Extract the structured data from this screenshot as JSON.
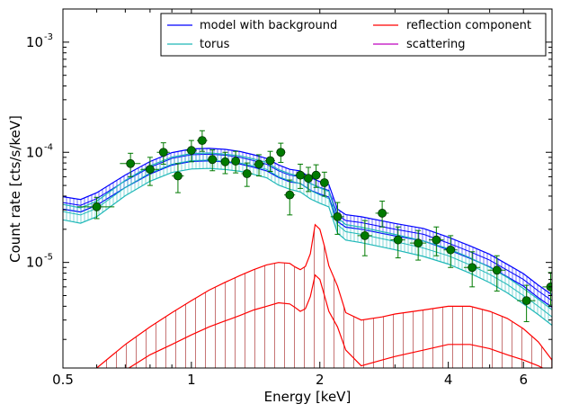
{
  "chart_data": {
    "type": "line",
    "xlabel": "Energy [keV]",
    "ylabel": "Count rate [cts/s/keV]",
    "x_scale": "log",
    "y_scale": "log",
    "xlim": [
      0.5,
      7.0
    ],
    "ylim": [
      1.1e-06,
      0.002
    ],
    "x_ticks": [
      {
        "value": 0.5,
        "label": "0.5"
      },
      {
        "value": 1,
        "label": "1"
      },
      {
        "value": 2,
        "label": "2"
      },
      {
        "value": 4,
        "label": "4"
      },
      {
        "value": 6,
        "label": "6"
      }
    ],
    "y_ticks": [
      {
        "value": 1e-05,
        "base": "10",
        "exp": "-5"
      },
      {
        "value": 0.0001,
        "base": "10",
        "exp": "-4"
      },
      {
        "value": 0.001,
        "base": "10",
        "exp": "-3"
      }
    ],
    "legend_position": "top-right",
    "legend": [
      {
        "label": "model with background",
        "color": "#0000ff"
      },
      {
        "label": "reflection component",
        "color": "#ff0000"
      },
      {
        "label": "torus",
        "color": "#1fb8b8"
      },
      {
        "label": "scattering",
        "color": "#bf00bf"
      }
    ],
    "series": [
      {
        "name": "model with background",
        "color": "#0000ff",
        "style": "band",
        "x": [
          0.5,
          0.55,
          0.6,
          0.7,
          0.8,
          0.9,
          1.0,
          1.1,
          1.2,
          1.3,
          1.4,
          1.5,
          1.6,
          1.7,
          1.8,
          1.9,
          2.0,
          2.1,
          2.2,
          2.3,
          2.5,
          3.0,
          3.5,
          4.0,
          4.5,
          5.0,
          5.5,
          6.0,
          6.5,
          7.0
        ],
        "y": [
          3.5e-05,
          3.3e-05,
          3.8e-05,
          5.5e-05,
          7.3e-05,
          8.8e-05,
          9.5e-05,
          9.6e-05,
          9.4e-05,
          9e-05,
          8.4e-05,
          7.8e-05,
          6.8e-05,
          6.2e-05,
          6e-05,
          5.2e-05,
          4.8e-05,
          4.5e-05,
          2.7e-05,
          2.4e-05,
          2.3e-05,
          2e-05,
          1.8e-05,
          1.5e-05,
          1.25e-05,
          1.05e-05,
          8.5e-06,
          7e-06,
          5.5e-06,
          4.5e-06
        ],
        "band": 0.13
      },
      {
        "name": "torus",
        "color": "#1fb8b8",
        "style": "band",
        "x": [
          0.5,
          0.55,
          0.6,
          0.7,
          0.8,
          0.9,
          1.0,
          1.1,
          1.2,
          1.3,
          1.4,
          1.5,
          1.6,
          1.7,
          1.8,
          1.9,
          2.0,
          2.1,
          2.2,
          2.3,
          2.5,
          3.0,
          3.5,
          4.0,
          4.5,
          5.0,
          5.5,
          6.0,
          6.5,
          7.0
        ],
        "y": [
          2.9e-05,
          2.7e-05,
          3.1e-05,
          4.8e-05,
          6.5e-05,
          7.8e-05,
          8.4e-05,
          8.5e-05,
          8.3e-05,
          8e-05,
          7.5e-05,
          7e-05,
          6e-05,
          5.5e-05,
          5.2e-05,
          4.5e-05,
          4.1e-05,
          3.8e-05,
          2.2e-05,
          1.9e-05,
          1.8e-05,
          1.55e-05,
          1.35e-05,
          1.15e-05,
          9.5e-06,
          7.8e-06,
          6.3e-06,
          5e-06,
          4e-06,
          3.2e-06
        ],
        "band": 0.16
      },
      {
        "name": "reflection component",
        "color": "#ff0000",
        "style": "band",
        "x": [
          0.6,
          0.7,
          0.8,
          0.9,
          1.0,
          1.1,
          1.2,
          1.3,
          1.4,
          1.5,
          1.6,
          1.7,
          1.75,
          1.8,
          1.85,
          1.9,
          1.95,
          2.0,
          2.05,
          2.1,
          2.2,
          2.3,
          2.5,
          2.8,
          3.0,
          3.5,
          4.0,
          4.5,
          5.0,
          5.5,
          6.0,
          6.5,
          7.0
        ],
        "y_low": [
          8e-07,
          1.05e-06,
          1.45e-06,
          1.8e-06,
          2.2e-06,
          2.6e-06,
          2.95e-06,
          3.3e-06,
          3.7e-06,
          4e-06,
          4.3e-06,
          4.2e-06,
          3.9e-06,
          3.6e-06,
          3.8e-06,
          4.9e-06,
          7.7e-06,
          7e-06,
          5e-06,
          3.6e-06,
          2.6e-06,
          1.6e-06,
          1.15e-06,
          1.3e-06,
          1.4e-06,
          1.6e-06,
          1.8e-06,
          1.8e-06,
          1.65e-06,
          1.45e-06,
          1.3e-06,
          1.15e-06,
          1e-06
        ],
        "y_high": [
          1.1e-06,
          1.8e-06,
          2.6e-06,
          3.5e-06,
          4.5e-06,
          5.6e-06,
          6.6e-06,
          7.6e-06,
          8.6e-06,
          9.5e-06,
          1e-05,
          9.8e-06,
          9.1e-06,
          8.6e-06,
          9.2e-06,
          1.2e-05,
          2.2e-05,
          2e-05,
          1.4e-05,
          9.3e-06,
          6.1e-06,
          3.5e-06,
          3e-06,
          3.2e-06,
          3.4e-06,
          3.7e-06,
          4e-06,
          4e-06,
          3.6e-06,
          3.1e-06,
          2.5e-06,
          1.9e-06,
          1.3e-06
        ]
      },
      {
        "name": "scattering",
        "color": "#bf00bf",
        "style": "line",
        "x": [],
        "y": []
      }
    ],
    "data_points": {
      "name": "data",
      "color": "#007a00",
      "points": [
        {
          "x": 0.6,
          "y": 3.2e-05,
          "xerr": 0.06,
          "ylo": 2.5e-05,
          "yhi": 3.9e-05
        },
        {
          "x": 0.72,
          "y": 7.9e-05,
          "xerr": 0.04,
          "ylo": 6e-05,
          "yhi": 9.8e-05
        },
        {
          "x": 0.8,
          "y": 7e-05,
          "xerr": 0.04,
          "ylo": 5e-05,
          "yhi": 9e-05
        },
        {
          "x": 0.86,
          "y": 0.0001,
          "xerr": 0.03,
          "ylo": 7.8e-05,
          "yhi": 0.000122
        },
        {
          "x": 0.93,
          "y": 6.1e-05,
          "xerr": 0.03,
          "ylo": 4.3e-05,
          "yhi": 7.9e-05
        },
        {
          "x": 1.0,
          "y": 0.000104,
          "xerr": 0.03,
          "ylo": 8.2e-05,
          "yhi": 0.000128
        },
        {
          "x": 1.06,
          "y": 0.000128,
          "xerr": 0.03,
          "ylo": 0.000102,
          "yhi": 0.000157
        },
        {
          "x": 1.12,
          "y": 8.6e-05,
          "xerr": 0.03,
          "ylo": 6.8e-05,
          "yhi": 0.000105
        },
        {
          "x": 1.2,
          "y": 8.2e-05,
          "xerr": 0.03,
          "ylo": 6.4e-05,
          "yhi": 0.0001
        },
        {
          "x": 1.27,
          "y": 8.3e-05,
          "xerr": 0.03,
          "ylo": 6.5e-05,
          "yhi": 0.000102
        },
        {
          "x": 1.35,
          "y": 6.4e-05,
          "xerr": 0.04,
          "ylo": 4.9e-05,
          "yhi": 8e-05
        },
        {
          "x": 1.44,
          "y": 7.8e-05,
          "xerr": 0.04,
          "ylo": 6.1e-05,
          "yhi": 9.5e-05
        },
        {
          "x": 1.53,
          "y": 8.4e-05,
          "xerr": 0.04,
          "ylo": 6.7e-05,
          "yhi": 0.000102
        },
        {
          "x": 1.62,
          "y": 0.0001,
          "xerr": 0.04,
          "ylo": 8.1e-05,
          "yhi": 0.000121
        },
        {
          "x": 1.7,
          "y": 4.1e-05,
          "xerr": 0.05,
          "ylo": 2.7e-05,
          "yhi": 5.6e-05
        },
        {
          "x": 1.8,
          "y": 6.2e-05,
          "xerr": 0.05,
          "ylo": 4.7e-05,
          "yhi": 7.8e-05
        },
        {
          "x": 1.88,
          "y": 5.8e-05,
          "xerr": 0.05,
          "ylo": 4.4e-05,
          "yhi": 7.3e-05
        },
        {
          "x": 1.96,
          "y": 6.2e-05,
          "xerr": 0.05,
          "ylo": 4.8e-05,
          "yhi": 7.7e-05
        },
        {
          "x": 2.05,
          "y": 5.3e-05,
          "xerr": 0.05,
          "ylo": 4e-05,
          "yhi": 6.6e-05
        },
        {
          "x": 2.2,
          "y": 2.6e-05,
          "xerr": 0.08,
          "ylo": 1.8e-05,
          "yhi": 3.5e-05
        },
        {
          "x": 2.55,
          "y": 1.75e-05,
          "xerr": 0.1,
          "ylo": 1.15e-05,
          "yhi": 2.4e-05
        },
        {
          "x": 2.8,
          "y": 2.8e-05,
          "xerr": 0.1,
          "ylo": 2.1e-05,
          "yhi": 3.6e-05
        },
        {
          "x": 3.05,
          "y": 1.6e-05,
          "xerr": 0.12,
          "ylo": 1.1e-05,
          "yhi": 2.1e-05
        },
        {
          "x": 3.4,
          "y": 1.5e-05,
          "xerr": 0.15,
          "ylo": 1.05e-05,
          "yhi": 1.95e-05
        },
        {
          "x": 3.75,
          "y": 1.6e-05,
          "xerr": 0.15,
          "ylo": 1.15e-05,
          "yhi": 2.1e-05
        },
        {
          "x": 4.05,
          "y": 1.3e-05,
          "xerr": 0.15,
          "ylo": 9e-06,
          "yhi": 1.75e-05
        },
        {
          "x": 4.55,
          "y": 9e-06,
          "xerr": 0.2,
          "ylo": 6e-06,
          "yhi": 1.25e-05
        },
        {
          "x": 5.2,
          "y": 8.5e-06,
          "xerr": 0.25,
          "ylo": 5.5e-06,
          "yhi": 1.15e-05
        },
        {
          "x": 6.1,
          "y": 4.5e-06,
          "xerr": 0.3,
          "ylo": 2.9e-06,
          "yhi": 6.2e-06
        },
        {
          "x": 6.95,
          "y": 6e-06,
          "xerr": 0.3,
          "ylo": 4.1e-06,
          "yhi": 8.1e-06
        }
      ]
    }
  }
}
